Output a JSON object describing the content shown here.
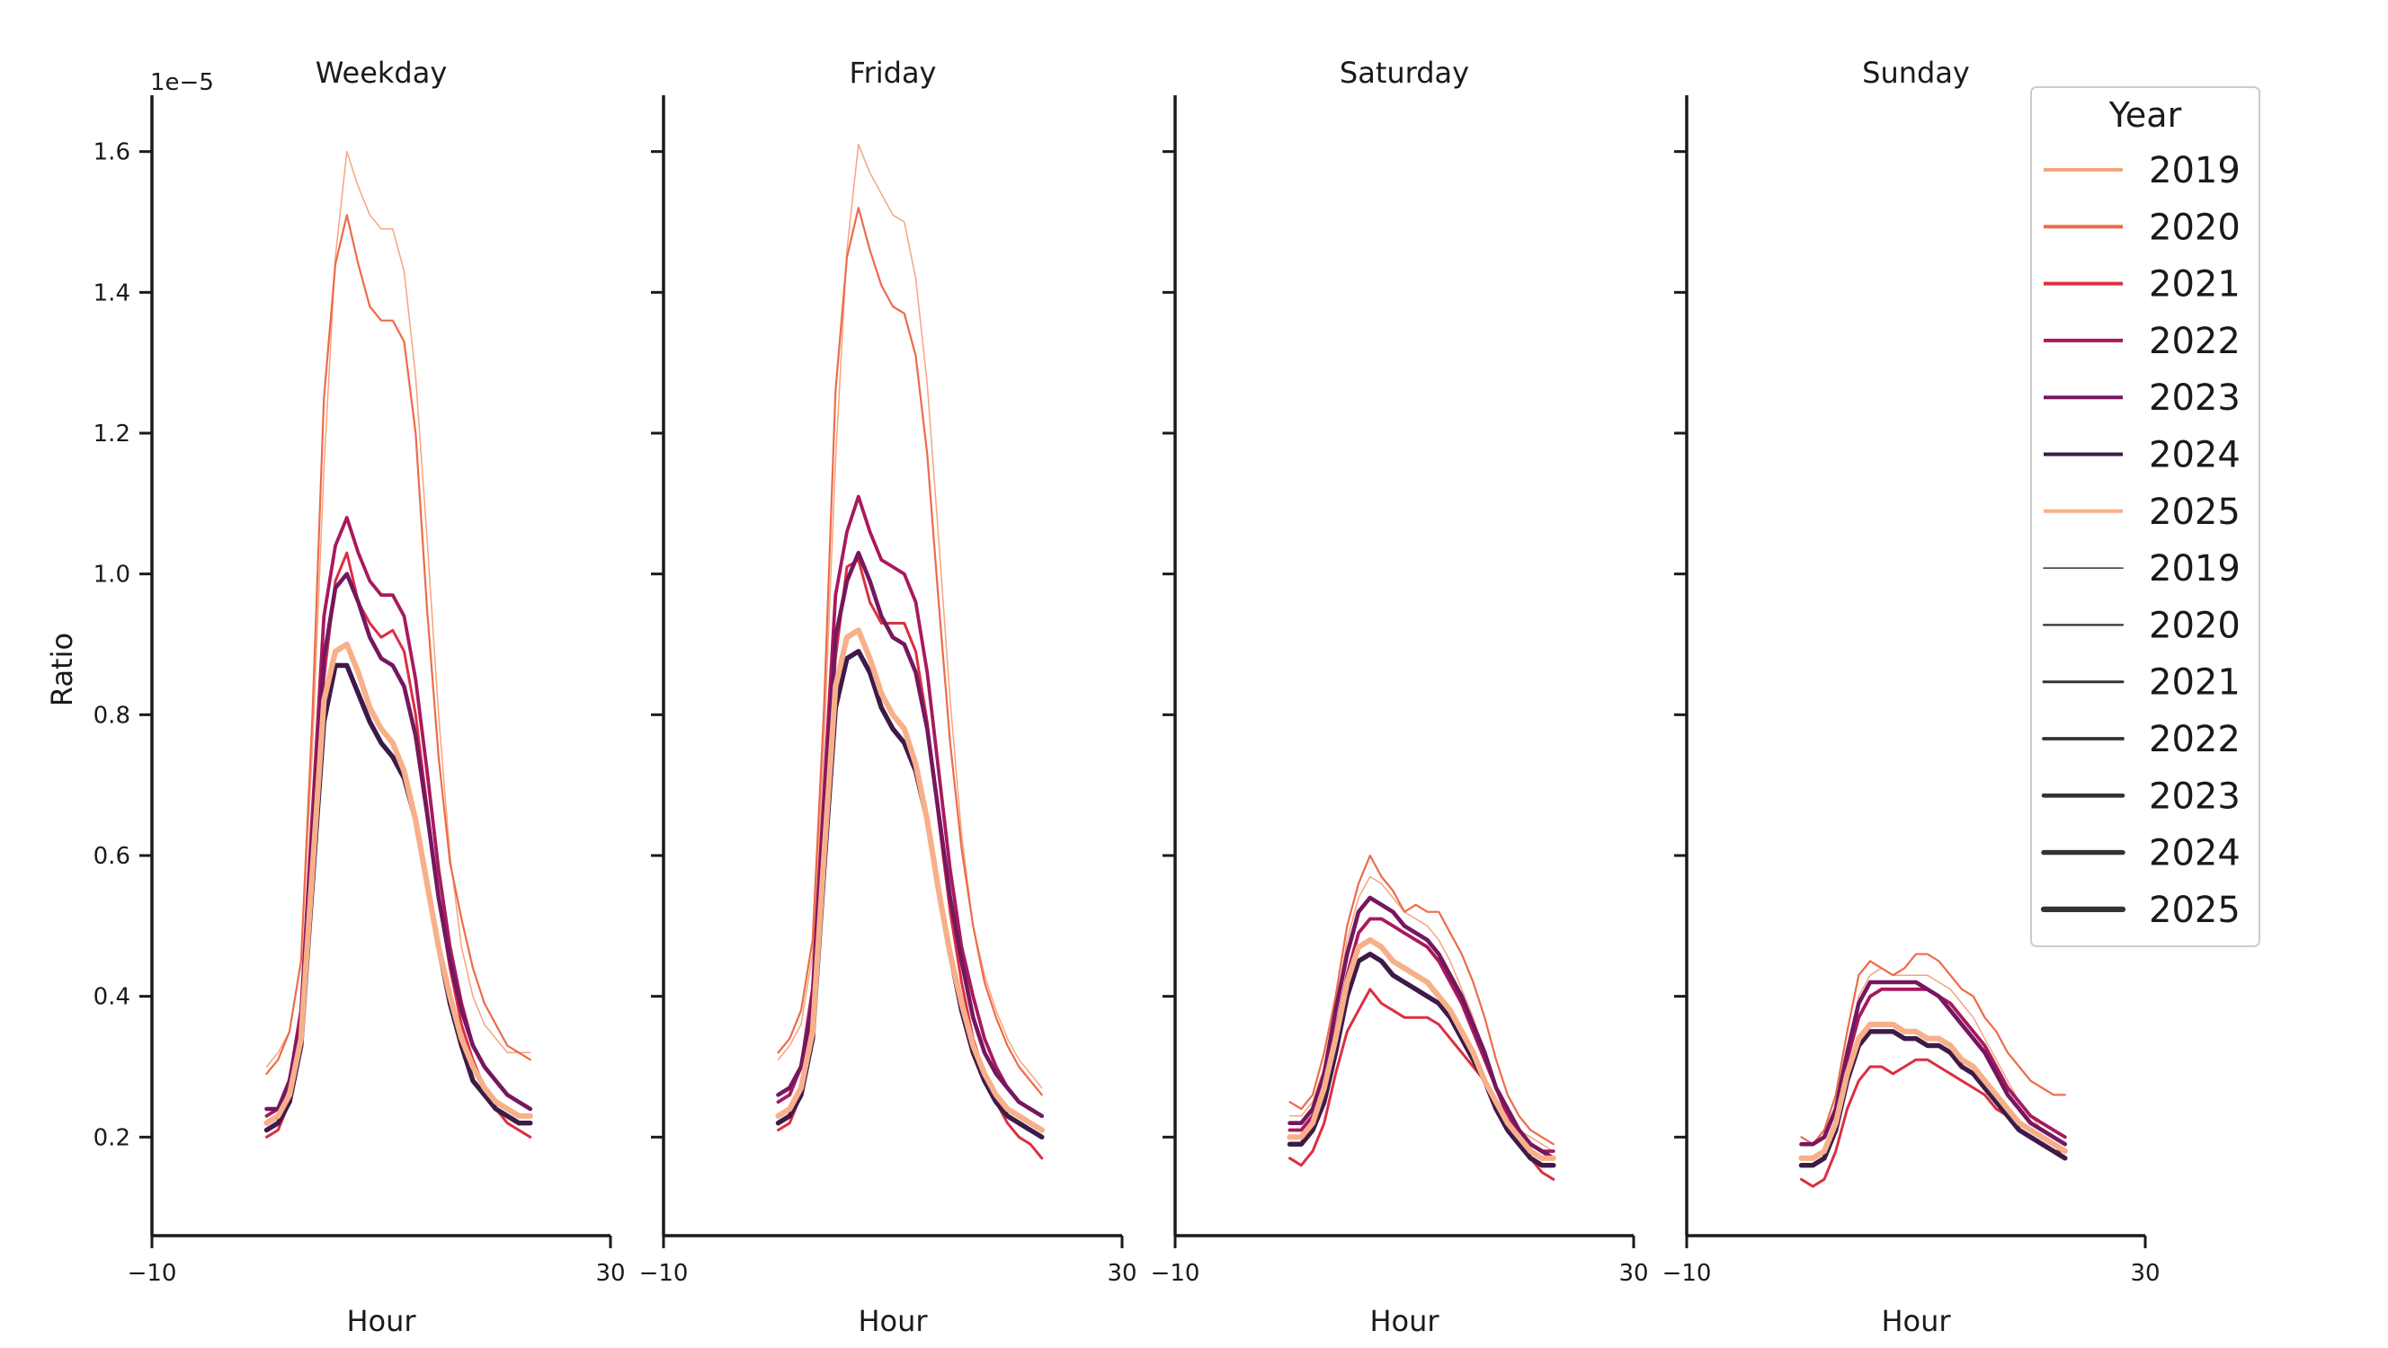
{
  "chart_data": {
    "type": "line",
    "ylabel": "Ratio",
    "xlabel": "Hour",
    "y_scale_label": "1e−5",
    "xlim": [
      -10,
      30
    ],
    "ylim": [
      0.06,
      1.68
    ],
    "x_ticks": [
      -10,
      30
    ],
    "x_tick_labels": [
      "−10",
      "30"
    ],
    "y_ticks": [
      0.2,
      0.4,
      0.6,
      0.8,
      1.0,
      1.2,
      1.4,
      1.6
    ],
    "y_tick_labels": [
      "0.2",
      "0.4",
      "0.6",
      "0.8",
      "1.0",
      "1.2",
      "1.4",
      "1.6"
    ],
    "hours": [
      0,
      1,
      2,
      3,
      4,
      5,
      6,
      7,
      8,
      9,
      10,
      11,
      12,
      13,
      14,
      15,
      16,
      17,
      18,
      19,
      20,
      21,
      22,
      23
    ],
    "legend": {
      "title": "Year",
      "hue_entries": [
        {
          "label": "2019",
          "color": "#f4a57f"
        },
        {
          "label": "2020",
          "color": "#ed6b4a"
        },
        {
          "label": "2021",
          "color": "#dc2f42"
        },
        {
          "label": "2022",
          "color": "#a8195e"
        },
        {
          "label": "2023",
          "color": "#75175f"
        },
        {
          "label": "2024",
          "color": "#3d1a48"
        },
        {
          "label": "2025",
          "color": "#f7b08a"
        }
      ],
      "size_entries": [
        {
          "label": "2019",
          "width": 1.5
        },
        {
          "label": "2020",
          "width": 2.2
        },
        {
          "label": "2021",
          "width": 3
        },
        {
          "label": "2022",
          "width": 3.8
        },
        {
          "label": "2023",
          "width": 4.6
        },
        {
          "label": "2024",
          "width": 5.4
        },
        {
          "label": "2025",
          "width": 6.2
        }
      ]
    },
    "panels": [
      {
        "title": "Weekday",
        "series": [
          {
            "name": "2019",
            "color": "#f4a57f",
            "width": 1.5,
            "values": [
              0.3,
              0.32,
              0.35,
              0.45,
              0.75,
              1.15,
              1.45,
              1.6,
              1.55,
              1.51,
              1.49,
              1.49,
              1.43,
              1.28,
              1.05,
              0.8,
              0.6,
              0.47,
              0.4,
              0.36,
              0.34,
              0.32,
              0.32,
              0.32
            ]
          },
          {
            "name": "2020",
            "color": "#ed6b4a",
            "width": 2.2,
            "values": [
              0.29,
              0.31,
              0.35,
              0.45,
              0.8,
              1.25,
              1.44,
              1.51,
              1.44,
              1.38,
              1.36,
              1.36,
              1.33,
              1.2,
              0.95,
              0.74,
              0.59,
              0.51,
              0.44,
              0.39,
              0.36,
              0.33,
              0.32,
              0.31
            ]
          },
          {
            "name": "2021",
            "color": "#dc2f42",
            "width": 3,
            "values": [
              0.2,
              0.21,
              0.25,
              0.35,
              0.6,
              0.85,
              0.99,
              1.03,
              0.96,
              0.93,
              0.91,
              0.92,
              0.89,
              0.8,
              0.67,
              0.54,
              0.44,
              0.36,
              0.31,
              0.27,
              0.24,
              0.22,
              0.21,
              0.2
            ]
          },
          {
            "name": "2022",
            "color": "#a8195e",
            "width": 3.8,
            "values": [
              0.23,
              0.24,
              0.28,
              0.38,
              0.66,
              0.94,
              1.04,
              1.08,
              1.03,
              0.99,
              0.97,
              0.97,
              0.94,
              0.85,
              0.72,
              0.58,
              0.47,
              0.39,
              0.33,
              0.3,
              0.28,
              0.26,
              0.25,
              0.24
            ]
          },
          {
            "name": "2023",
            "color": "#75175f",
            "width": 4.6,
            "values": [
              0.24,
              0.24,
              0.28,
              0.36,
              0.62,
              0.88,
              0.98,
              1.0,
              0.96,
              0.91,
              0.88,
              0.87,
              0.84,
              0.77,
              0.66,
              0.54,
              0.45,
              0.38,
              0.33,
              0.3,
              0.28,
              0.26,
              0.25,
              0.24
            ]
          },
          {
            "name": "2024",
            "color": "#3d1a48",
            "width": 5.4,
            "values": [
              0.21,
              0.22,
              0.25,
              0.33,
              0.56,
              0.79,
              0.87,
              0.87,
              0.83,
              0.79,
              0.76,
              0.74,
              0.71,
              0.65,
              0.56,
              0.47,
              0.39,
              0.33,
              0.28,
              0.26,
              0.24,
              0.23,
              0.22,
              0.22
            ]
          },
          {
            "name": "2025",
            "color": "#f7b08a",
            "width": 6.2,
            "values": [
              0.22,
              0.23,
              0.26,
              0.34,
              0.58,
              0.82,
              0.89,
              0.9,
              0.86,
              0.81,
              0.78,
              0.76,
              0.72,
              0.65,
              0.56,
              0.47,
              0.4,
              0.34,
              0.3,
              0.27,
              0.25,
              0.24,
              0.23,
              0.23
            ]
          }
        ]
      },
      {
        "title": "Friday",
        "series": [
          {
            "name": "2019",
            "color": "#f4a57f",
            "width": 1.5,
            "values": [
              0.31,
              0.33,
              0.36,
              0.46,
              0.76,
              1.16,
              1.46,
              1.61,
              1.57,
              1.54,
              1.51,
              1.5,
              1.42,
              1.27,
              1.05,
              0.82,
              0.63,
              0.5,
              0.43,
              0.38,
              0.34,
              0.31,
              0.29,
              0.27
            ]
          },
          {
            "name": "2020",
            "color": "#ed6b4a",
            "width": 2.2,
            "values": [
              0.32,
              0.34,
              0.38,
              0.48,
              0.81,
              1.26,
              1.45,
              1.52,
              1.46,
              1.41,
              1.38,
              1.37,
              1.31,
              1.17,
              0.96,
              0.76,
              0.61,
              0.5,
              0.42,
              0.37,
              0.33,
              0.3,
              0.28,
              0.26
            ]
          },
          {
            "name": "2021",
            "color": "#dc2f42",
            "width": 3,
            "values": [
              0.21,
              0.22,
              0.26,
              0.37,
              0.62,
              0.88,
              1.01,
              1.02,
              0.96,
              0.93,
              0.93,
              0.93,
              0.89,
              0.79,
              0.65,
              0.52,
              0.42,
              0.34,
              0.29,
              0.25,
              0.22,
              0.2,
              0.19,
              0.17
            ]
          },
          {
            "name": "2022",
            "color": "#a8195e",
            "width": 3.8,
            "values": [
              0.25,
              0.26,
              0.3,
              0.41,
              0.69,
              0.97,
              1.06,
              1.11,
              1.06,
              1.02,
              1.01,
              1.0,
              0.96,
              0.86,
              0.72,
              0.58,
              0.47,
              0.4,
              0.34,
              0.3,
              0.27,
              0.25,
              0.24,
              0.23
            ]
          },
          {
            "name": "2023",
            "color": "#75175f",
            "width": 4.6,
            "values": [
              0.26,
              0.27,
              0.3,
              0.39,
              0.65,
              0.91,
              0.99,
              1.03,
              0.99,
              0.94,
              0.91,
              0.9,
              0.86,
              0.78,
              0.66,
              0.54,
              0.45,
              0.37,
              0.32,
              0.29,
              0.27,
              0.25,
              0.24,
              0.23
            ]
          },
          {
            "name": "2024",
            "color": "#3d1a48",
            "width": 5.4,
            "values": [
              0.22,
              0.23,
              0.26,
              0.34,
              0.58,
              0.81,
              0.88,
              0.89,
              0.86,
              0.81,
              0.78,
              0.76,
              0.72,
              0.65,
              0.55,
              0.46,
              0.38,
              0.32,
              0.28,
              0.25,
              0.23,
              0.22,
              0.21,
              0.2
            ]
          },
          {
            "name": "2025",
            "color": "#f7b08a",
            "width": 6.2,
            "values": [
              0.23,
              0.24,
              0.27,
              0.35,
              0.6,
              0.84,
              0.91,
              0.92,
              0.88,
              0.83,
              0.8,
              0.78,
              0.73,
              0.65,
              0.55,
              0.46,
              0.39,
              0.33,
              0.29,
              0.26,
              0.24,
              0.23,
              0.22,
              0.21
            ]
          }
        ]
      },
      {
        "title": "Saturday",
        "series": [
          {
            "name": "2019",
            "color": "#f4a57f",
            "width": 1.5,
            "values": [
              0.23,
              0.23,
              0.25,
              0.3,
              0.38,
              0.48,
              0.54,
              0.57,
              0.56,
              0.54,
              0.52,
              0.51,
              0.5,
              0.48,
              0.45,
              0.41,
              0.37,
              0.32,
              0.27,
              0.23,
              0.21,
              0.2,
              0.19,
              0.18
            ]
          },
          {
            "name": "2020",
            "color": "#ed6b4a",
            "width": 2.2,
            "values": [
              0.25,
              0.24,
              0.26,
              0.32,
              0.4,
              0.5,
              0.56,
              0.6,
              0.57,
              0.55,
              0.52,
              0.53,
              0.52,
              0.52,
              0.49,
              0.46,
              0.42,
              0.37,
              0.31,
              0.26,
              0.23,
              0.21,
              0.2,
              0.19
            ]
          },
          {
            "name": "2021",
            "color": "#dc2f42",
            "width": 3,
            "values": [
              0.17,
              0.16,
              0.18,
              0.22,
              0.29,
              0.35,
              0.38,
              0.41,
              0.39,
              0.38,
              0.37,
              0.37,
              0.37,
              0.36,
              0.34,
              0.32,
              0.3,
              0.28,
              0.25,
              0.22,
              0.19,
              0.17,
              0.15,
              0.14
            ]
          },
          {
            "name": "2022",
            "color": "#a8195e",
            "width": 3.8,
            "values": [
              0.21,
              0.21,
              0.23,
              0.28,
              0.35,
              0.43,
              0.49,
              0.51,
              0.51,
              0.5,
              0.49,
              0.48,
              0.47,
              0.45,
              0.42,
              0.39,
              0.35,
              0.31,
              0.27,
              0.23,
              0.2,
              0.19,
              0.18,
              0.18
            ]
          },
          {
            "name": "2023",
            "color": "#75175f",
            "width": 4.6,
            "values": [
              0.22,
              0.22,
              0.24,
              0.29,
              0.38,
              0.46,
              0.52,
              0.54,
              0.53,
              0.52,
              0.5,
              0.49,
              0.48,
              0.46,
              0.43,
              0.4,
              0.36,
              0.32,
              0.27,
              0.24,
              0.21,
              0.19,
              0.18,
              0.17
            ]
          },
          {
            "name": "2024",
            "color": "#3d1a48",
            "width": 5.4,
            "values": [
              0.19,
              0.19,
              0.21,
              0.25,
              0.32,
              0.4,
              0.45,
              0.46,
              0.45,
              0.43,
              0.42,
              0.41,
              0.4,
              0.39,
              0.37,
              0.34,
              0.31,
              0.28,
              0.24,
              0.21,
              0.19,
              0.17,
              0.16,
              0.16
            ]
          },
          {
            "name": "2025",
            "color": "#f7b08a",
            "width": 6.2,
            "values": [
              0.2,
              0.2,
              0.22,
              0.27,
              0.34,
              0.42,
              0.47,
              0.48,
              0.47,
              0.45,
              0.44,
              0.43,
              0.42,
              0.4,
              0.38,
              0.35,
              0.32,
              0.28,
              0.25,
              0.22,
              0.2,
              0.18,
              0.17,
              0.17
            ]
          }
        ]
      },
      {
        "title": "Sunday",
        "series": [
          {
            "name": "2019",
            "color": "#f4a57f",
            "width": 1.5,
            "values": [
              0.19,
              0.19,
              0.2,
              0.24,
              0.32,
              0.4,
              0.43,
              0.44,
              0.43,
              0.43,
              0.43,
              0.43,
              0.42,
              0.41,
              0.39,
              0.37,
              0.34,
              0.31,
              0.28,
              0.25,
              0.23,
              0.21,
              0.2,
              0.19
            ]
          },
          {
            "name": "2020",
            "color": "#ed6b4a",
            "width": 2.2,
            "values": [
              0.2,
              0.19,
              0.21,
              0.26,
              0.35,
              0.43,
              0.45,
              0.44,
              0.43,
              0.44,
              0.46,
              0.46,
              0.45,
              0.43,
              0.41,
              0.4,
              0.37,
              0.35,
              0.32,
              0.3,
              0.28,
              0.27,
              0.26,
              0.26
            ]
          },
          {
            "name": "2021",
            "color": "#dc2f42",
            "width": 3,
            "values": [
              0.14,
              0.13,
              0.14,
              0.18,
              0.24,
              0.28,
              0.3,
              0.3,
              0.29,
              0.3,
              0.31,
              0.31,
              0.3,
              0.29,
              0.28,
              0.27,
              0.26,
              0.24,
              0.23,
              0.21,
              0.2,
              0.19,
              0.18,
              0.18
            ]
          },
          {
            "name": "2022",
            "color": "#a8195e",
            "width": 3.8,
            "values": [
              0.19,
              0.19,
              0.2,
              0.24,
              0.31,
              0.37,
              0.4,
              0.41,
              0.41,
              0.41,
              0.41,
              0.41,
              0.4,
              0.39,
              0.37,
              0.35,
              0.33,
              0.3,
              0.27,
              0.25,
              0.23,
              0.22,
              0.21,
              0.2
            ]
          },
          {
            "name": "2023",
            "color": "#75175f",
            "width": 4.6,
            "values": [
              0.19,
              0.19,
              0.2,
              0.24,
              0.32,
              0.39,
              0.42,
              0.42,
              0.42,
              0.42,
              0.42,
              0.41,
              0.4,
              0.38,
              0.36,
              0.34,
              0.32,
              0.29,
              0.26,
              0.24,
              0.22,
              0.21,
              0.2,
              0.19
            ]
          },
          {
            "name": "2024",
            "color": "#3d1a48",
            "width": 5.4,
            "values": [
              0.16,
              0.16,
              0.17,
              0.21,
              0.28,
              0.33,
              0.35,
              0.35,
              0.35,
              0.34,
              0.34,
              0.33,
              0.33,
              0.32,
              0.3,
              0.29,
              0.27,
              0.25,
              0.23,
              0.21,
              0.2,
              0.19,
              0.18,
              0.17
            ]
          },
          {
            "name": "2025",
            "color": "#f7b08a",
            "width": 6.2,
            "values": [
              0.17,
              0.17,
              0.18,
              0.22,
              0.29,
              0.34,
              0.36,
              0.36,
              0.36,
              0.35,
              0.35,
              0.34,
              0.34,
              0.33,
              0.31,
              0.3,
              0.28,
              0.26,
              0.24,
              0.22,
              0.21,
              0.2,
              0.19,
              0.18
            ]
          }
        ]
      }
    ]
  }
}
